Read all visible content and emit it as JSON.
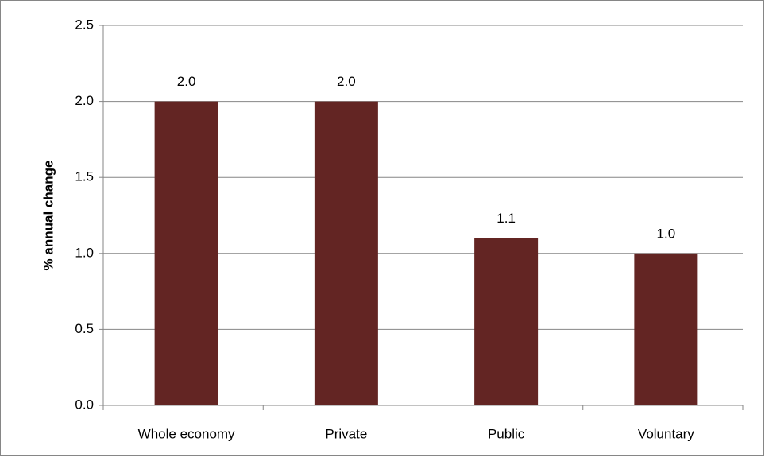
{
  "chart_data": {
    "type": "bar",
    "y_label": "% annual change",
    "categories": [
      "Whole economy",
      "Private",
      "Public",
      "Voluntary"
    ],
    "values": [
      2.0,
      2.0,
      1.1,
      1.0
    ],
    "value_labels": [
      "2.0",
      "2.0",
      "1.1",
      "1.0"
    ],
    "color": "#632523",
    "ylim": [
      0,
      2.5
    ],
    "yticks": [
      {
        "value": 0,
        "label": "0.0"
      },
      0.5,
      {
        "value": 1,
        "label": "1.0"
      },
      1.5,
      {
        "value": 2,
        "label": "2.0"
      },
      2.5
    ],
    "grid": true
  }
}
